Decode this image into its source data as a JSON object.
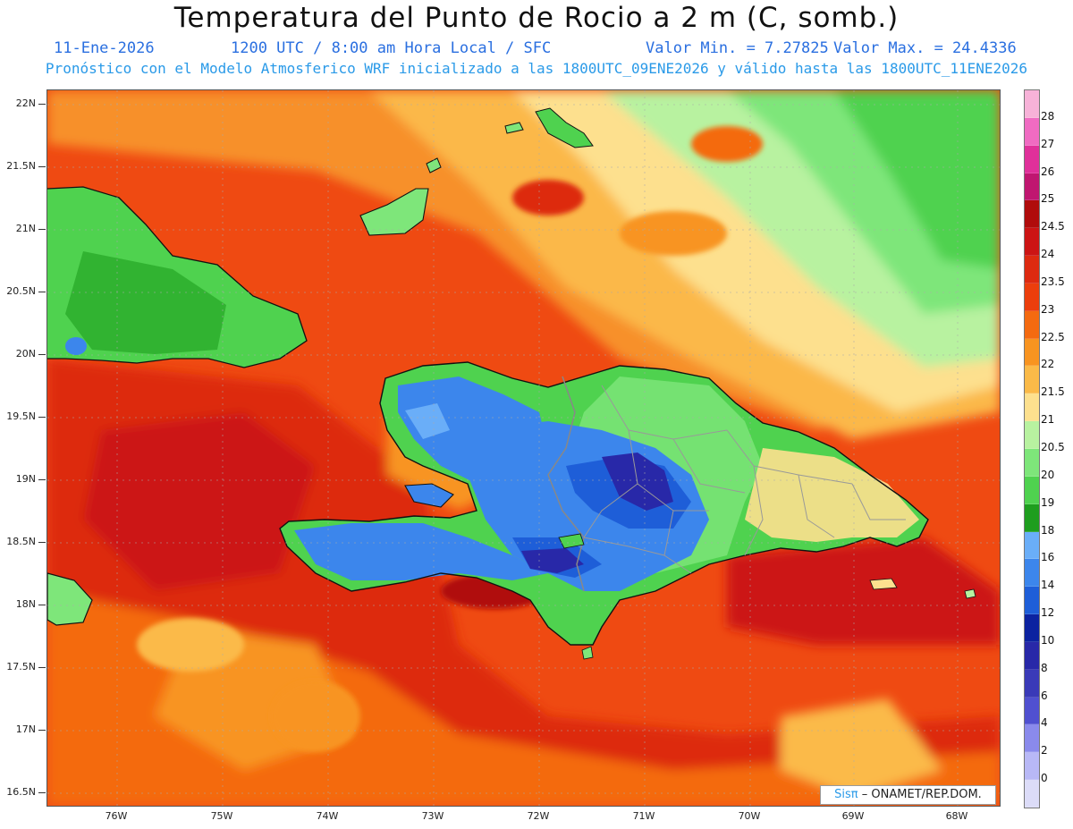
{
  "header": {
    "title": "Temperatura del Punto de Rocio a 2 m (C, somb.)",
    "date": "11-Ene-2026",
    "time": "1200 UTC / 8:00 am Hora Local / SFC",
    "min_value": "Valor Min. = 7.27825",
    "max_value": "Valor Max. = 24.4336",
    "model_info": "Pronóstico con el Modelo Atmosferico WRF inicializado a las 1800UTC_09ENE2026 y válido hasta las  1800UTC_11ENE2026"
  },
  "axes": {
    "y_labels": [
      "22N",
      "21.5N",
      "21N",
      "20.5N",
      "20N",
      "19.5N",
      "19N",
      "18.5N",
      "18N",
      "17.5N",
      "17N",
      "16.5N"
    ],
    "x_labels": [
      "76W",
      "75W",
      "74W",
      "73W",
      "72W",
      "71W",
      "70W",
      "69W",
      "68W"
    ]
  },
  "colorbar": {
    "labels": [
      "28",
      "27",
      "26",
      "25",
      "24.5",
      "24",
      "23.5",
      "23",
      "22.5",
      "22",
      "21.5",
      "21",
      "20.5",
      "20",
      "19",
      "18",
      "16",
      "14",
      "12",
      "10",
      "8",
      "6",
      "4",
      "2",
      "0"
    ],
    "colors": [
      "#f7b2d8",
      "#f06bc2",
      "#e0309a",
      "#c01670",
      "#b00c0c",
      "#cc1414",
      "#dd2a10",
      "#ec3e0c",
      "#f46a10",
      "#f89420",
      "#fbba48",
      "#fde08e",
      "#b8f2a0",
      "#7ee67a",
      "#4fd24f",
      "#1e9e1e",
      "#6aaef8",
      "#3c86ec",
      "#1e5ed8",
      "#0c22a0",
      "#2828a8",
      "#3a3ab8",
      "#5050d0",
      "#8a8aec",
      "#b8b8f6",
      "#dcdcf8"
    ]
  },
  "credit": {
    "sis": "Sisπ",
    "org": "– ONAMET/REP.DOM."
  }
}
